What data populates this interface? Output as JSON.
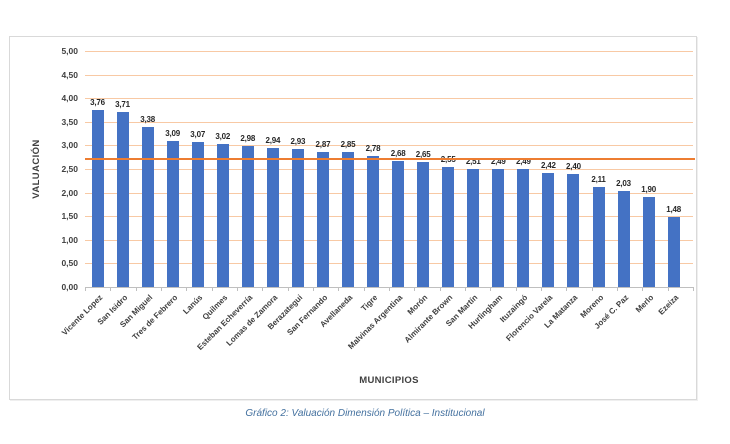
{
  "caption": "Gráfico 2: Valuación Dimensión Política – Institucional",
  "chart_data": {
    "type": "bar",
    "title": "",
    "xlabel": "MUNICIPIOS",
    "ylabel": "VALUACIÓN",
    "categories": [
      "Vicente Lopez",
      "San Isidro",
      "San Miguel",
      "Tres de Febrero",
      "Lanús",
      "Quilmes",
      "Esteban Echeverría",
      "Lomas de Zamora",
      "Berazategui",
      "San Fernando",
      "Avellaneda",
      "Tigre",
      "Malvinas Argentina",
      "Morón",
      "Almirante Brown",
      "San Martín",
      "Hurlingham",
      "Ituzaingó",
      "Florencio Varela",
      "La Matanza",
      "Moreno",
      "José C. Paz",
      "Merlo",
      "Ezeiza"
    ],
    "values": [
      3.76,
      3.71,
      3.38,
      3.09,
      3.07,
      3.02,
      2.98,
      2.94,
      2.93,
      2.87,
      2.85,
      2.78,
      2.68,
      2.65,
      2.55,
      2.51,
      2.49,
      2.49,
      2.42,
      2.4,
      2.11,
      2.03,
      1.9,
      1.48
    ],
    "value_labels": [
      "3,76",
      "3,71",
      "3,38",
      "3,09",
      "3,07",
      "3,02",
      "2,98",
      "2,94",
      "2,93",
      "2,87",
      "2,85",
      "2,78",
      "2,68",
      "2,65",
      "2,55",
      "2,51",
      "2,49",
      "2,49",
      "2,42",
      "2,40",
      "2,11",
      "2,03",
      "1,90",
      "1,48"
    ],
    "y_tick_values": [
      0,
      0.5,
      1,
      1.5,
      2,
      2.5,
      3,
      3.5,
      4,
      4.5,
      5
    ],
    "y_tick_labels": [
      "0,00",
      "0,50",
      "1,00",
      "1,50",
      "2,00",
      "2,50",
      "3,00",
      "3,50",
      "4,00",
      "4,50",
      "5,00"
    ],
    "ylim": [
      0,
      5
    ],
    "grid": true,
    "legend": "none",
    "average_line_value": 2.71,
    "colors": {
      "bar": "#4472c4",
      "average_line": "#ed7d31",
      "gridline": "#f8c9a4",
      "axis": "#bfbfbf",
      "value_label": "#262626",
      "tick_label": "#404040",
      "caption": "#44719f"
    }
  }
}
